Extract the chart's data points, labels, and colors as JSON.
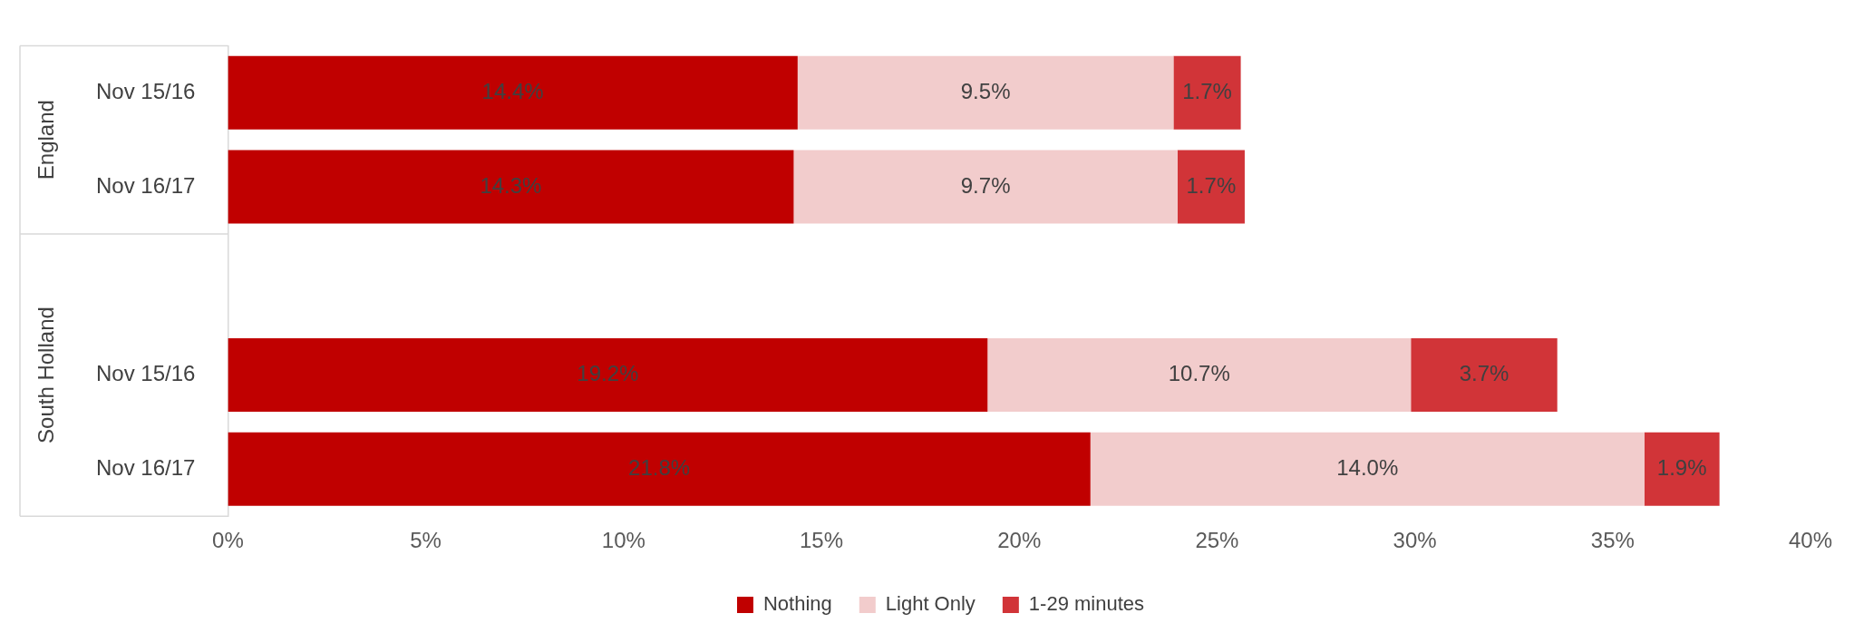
{
  "chart_data": {
    "type": "bar",
    "orientation": "horizontal",
    "stacked": true,
    "categories": [
      "Nov 15/16",
      "Nov 16/17",
      null,
      "Nov 15/16",
      "Nov 16/17"
    ],
    "series": [
      {
        "name": "Nothing",
        "color": "#c00000",
        "values": [
          14.4,
          14.3,
          null,
          19.2,
          21.8
        ],
        "value_labels": [
          "14.4%",
          "14.3%",
          null,
          "19.2%",
          "21.8%"
        ]
      },
      {
        "name": "Light Only",
        "color": "#f2cccc",
        "values": [
          9.5,
          9.7,
          null,
          10.7,
          14.0
        ],
        "value_labels": [
          "9.5%",
          "9.7%",
          null,
          "10.7%",
          "14.0%"
        ]
      },
      {
        "name": "1-29 minutes",
        "color": "#d13438",
        "values": [
          1.7,
          1.7,
          null,
          3.7,
          1.9
        ],
        "value_labels": [
          "1.7%",
          "1.7%",
          null,
          "3.7%",
          "1.9%"
        ]
      }
    ],
    "xlim": [
      0,
      40
    ],
    "xticks": [
      {
        "value": 0,
        "label": "0%"
      },
      {
        "value": 5,
        "label": "5%"
      },
      {
        "value": 10,
        "label": "10%"
      },
      {
        "value": 15,
        "label": "15%"
      },
      {
        "value": 20,
        "label": "20%"
      },
      {
        "value": 25,
        "label": "25%"
      },
      {
        "value": 30,
        "label": "30%"
      },
      {
        "value": 35,
        "label": "35%"
      },
      {
        "value": 40,
        "label": "40%"
      }
    ],
    "annotations": [
      "England",
      "South Holland"
    ],
    "grid": false,
    "legend": "bottom"
  }
}
